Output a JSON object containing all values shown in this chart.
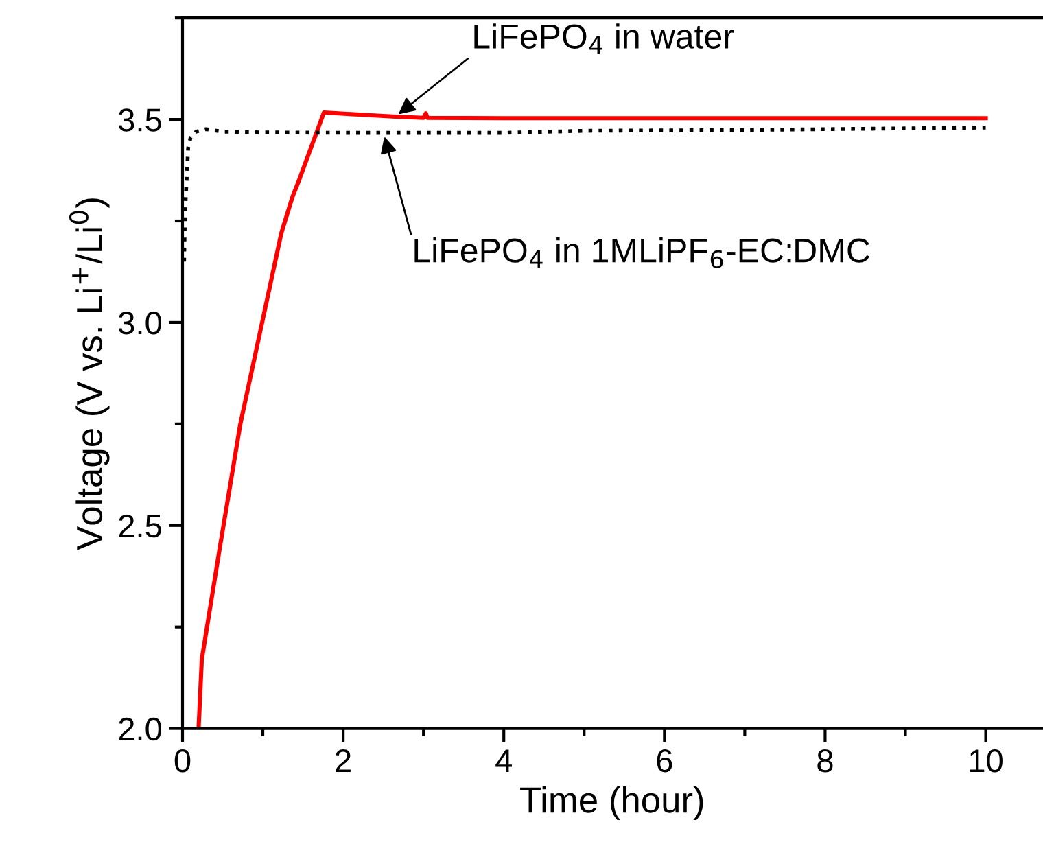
{
  "chart_data": {
    "type": "line",
    "xlabel": "Time (hour)",
    "ylabel": "Voltage (V vs. Li$^{+}$/Li$^{0}$)",
    "series": [
      {
        "color": "#ff0000",
        "line_style": "solid",
        "x": [
          0.2,
          0.24,
          0.46,
          0.72,
          1.23,
          1.37,
          1.45,
          1.76,
          2.2,
          2.65,
          3.0,
          3.03,
          3.05,
          4.0,
          5.0,
          6.0,
          7.0,
          8.0,
          9.0,
          10.0
        ],
        "values": [
          2.0,
          2.17,
          2.44,
          2.75,
          3.22,
          3.31,
          3.35,
          3.517,
          3.512,
          3.507,
          3.504,
          3.515,
          3.504,
          3.503,
          3.503,
          3.503,
          3.503,
          3.503,
          3.503,
          3.503
        ]
      },
      {
        "color": "#000000",
        "line_style": "dotted",
        "x": [
          0.02,
          0.03,
          0.05,
          0.07,
          0.1,
          0.17,
          0.29,
          0.5,
          1.0,
          2.0,
          3.0,
          4.0,
          4.6,
          5.0,
          6.0,
          7.0,
          8.0,
          9.0,
          10.0
        ],
        "values": [
          3.15,
          3.27,
          3.345,
          3.43,
          3.455,
          3.47,
          3.476,
          3.47,
          3.468,
          3.467,
          3.467,
          3.467,
          3.47,
          3.472,
          3.473,
          3.474,
          3.476,
          3.478,
          3.48
        ]
      }
    ],
    "xlim": [
      0,
      10.7
    ],
    "ylim": [
      2.0,
      3.75
    ],
    "xticks": [
      0,
      2,
      4,
      6,
      8,
      10
    ],
    "yticks": [
      {
        "value": 2.0,
        "label": "2.0"
      },
      {
        "value": 2.5,
        "label": "2.5"
      },
      {
        "value": 3.0,
        "label": "3.0"
      },
      {
        "value": 3.5,
        "label": "3.5"
      }
    ],
    "grid": false,
    "legend": false,
    "annotations": [
      {
        "text": "LiFePO$_{4}$ in water",
        "x": 2.65,
        "y": 3.507
      },
      {
        "text": "LiFePO$_{4}$ in 1MLiPF$_{6}$-EC:DMC",
        "x": 2.5,
        "y": 3.467
      }
    ]
  }
}
